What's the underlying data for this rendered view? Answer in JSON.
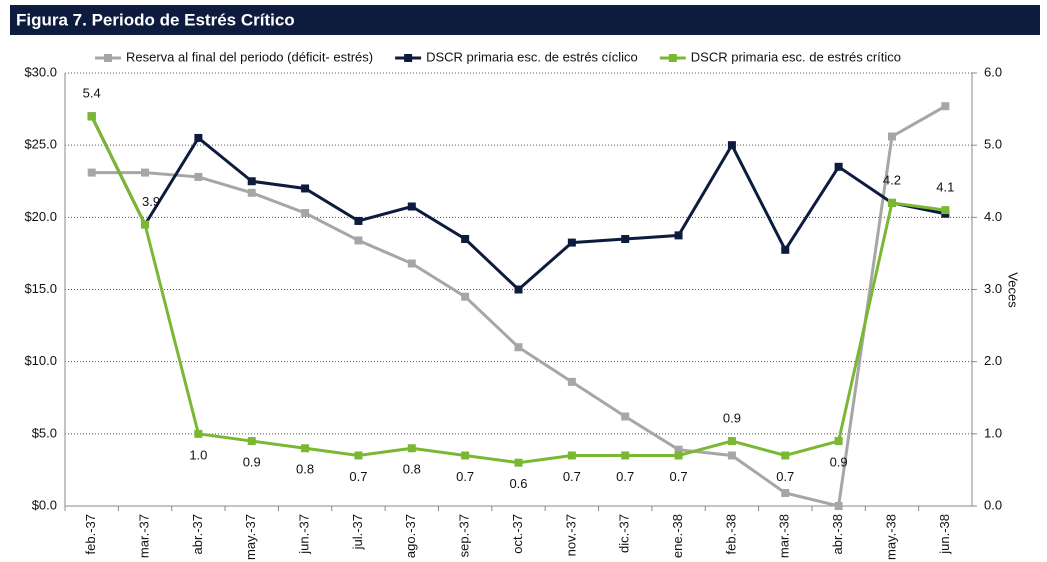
{
  "chart_data": {
    "type": "line",
    "title": "Figura 7. Periodo de Estrés Crítico",
    "y2label": "Veces",
    "categories": [
      "feb.-37",
      "mar.-37",
      "abr.-37",
      "may.-37",
      "jun.-37",
      "jul.-37",
      "ago.-37",
      "sep.-37",
      "oct.-37",
      "nov.-37",
      "dic.-37",
      "ene.-38",
      "feb.-38",
      "mar.-38",
      "abr.-38",
      "may.-38",
      "jun.-38"
    ],
    "series": [
      {
        "name": "Reserva al final del periodo (déficit- estrés)",
        "color": "#a6a6a6",
        "axis": "y",
        "values": [
          23.1,
          23.1,
          22.8,
          21.7,
          20.3,
          18.4,
          16.8,
          14.5,
          11.0,
          8.6,
          6.2,
          3.9,
          3.5,
          0.9,
          0.0,
          25.6,
          27.7
        ]
      },
      {
        "name": "DSCR primaria esc. de estrés cíclico",
        "color": "#0d1b3e",
        "axis": "y2",
        "values": [
          5.4,
          3.9,
          5.1,
          4.5,
          4.4,
          3.95,
          4.15,
          3.7,
          3.0,
          3.65,
          3.7,
          3.75,
          5.0,
          3.55,
          4.7,
          4.2,
          4.05
        ]
      },
      {
        "name": "DSCR primaria esc. de estrés crítico",
        "color": "#7ab833",
        "axis": "y2",
        "values": [
          5.4,
          3.9,
          1.0,
          0.9,
          0.8,
          0.7,
          0.8,
          0.7,
          0.6,
          0.7,
          0.7,
          0.7,
          0.9,
          0.7,
          0.9,
          4.2,
          4.1
        ],
        "value_labels": [
          "5.4",
          "3.9",
          "1.0",
          "0.9",
          "0.8",
          "0.7",
          "0.8",
          "0.7",
          "0.6",
          "0.7",
          "0.7",
          "0.7",
          "0.9",
          "0.7",
          "0.9",
          "4.2",
          "4.1"
        ]
      }
    ],
    "ylim": [
      0,
      30
    ],
    "yticks": [
      {
        "value": 0,
        "label": "$0.0"
      },
      {
        "value": 5,
        "label": "$5.0"
      },
      {
        "value": 10,
        "label": "$10.0"
      },
      {
        "value": 15,
        "label": "$15.0"
      },
      {
        "value": 20,
        "label": "$20.0"
      },
      {
        "value": 25,
        "label": "$25.0"
      },
      {
        "value": 30,
        "label": "$30.0"
      }
    ],
    "y2lim": [
      0,
      6
    ],
    "y2ticks": [
      {
        "value": 0,
        "label": "0.0"
      },
      {
        "value": 1,
        "label": "1.0"
      },
      {
        "value": 2,
        "label": "2.0"
      },
      {
        "value": 3,
        "label": "3.0"
      },
      {
        "value": 4,
        "label": "4.0"
      },
      {
        "value": 5,
        "label": "5.0"
      },
      {
        "value": 6,
        "label": "6.0"
      }
    ],
    "grid": true
  }
}
